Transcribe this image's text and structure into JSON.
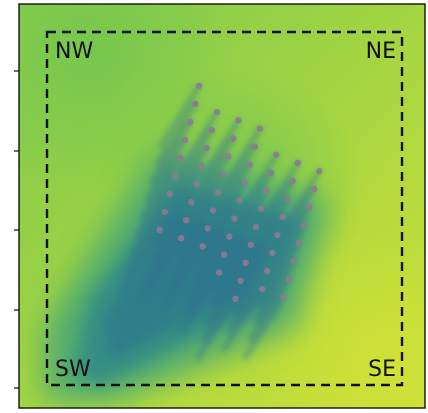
{
  "map": {
    "corner_labels": {
      "nw": "NW",
      "ne": "NE",
      "sw": "SW",
      "se": "SE"
    },
    "colors": {
      "field_base": "#a9d543",
      "field_green": "#7cc94f",
      "wake_mid": "#3aa07e",
      "wake_deep": "#2f7f8c",
      "wake_core": "#2a6f91",
      "turbine_marker": "#8d7a92",
      "boundary_line": "#111111",
      "frame": "#111111"
    }
  }
}
